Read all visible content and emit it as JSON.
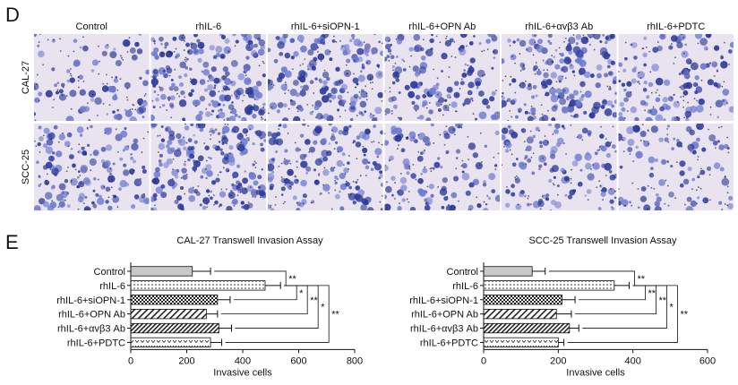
{
  "panel_d": {
    "letter": "D",
    "columns": [
      "Control",
      "rhIL-6",
      "rhIL-6+siOPN-1",
      "rhIL-6+OPN Ab",
      "rhIL-6+αvβ3 Ab",
      "rhIL-6+PDTC"
    ],
    "rows": [
      "CAL-27",
      "SCC-25"
    ],
    "image_colors": {
      "background": "#e9e3ef",
      "stain_dark": "#2c3a9a",
      "stain_light": "#6f7bd0"
    }
  },
  "panel_e": {
    "letter": "E"
  },
  "chart_data": [
    {
      "type": "bar",
      "orientation": "horizontal",
      "title": "CAL-27 Transwell Invasion Assay",
      "xlabel": "Invasive cells",
      "ylabel": "",
      "xlim": [
        0,
        800
      ],
      "xticks": [
        0,
        200,
        400,
        600,
        800
      ],
      "categories": [
        "Control",
        "rhIL-6",
        "rhIL-6+siOPN-1",
        "rhIL-6+OPN Ab",
        "rhIL-6+αvβ3 Ab",
        "rhIL-6+PDTC"
      ],
      "values": [
        220,
        480,
        310,
        270,
        315,
        285
      ],
      "errors": [
        65,
        55,
        45,
        40,
        45,
        40
      ],
      "patterns": [
        "gray",
        "dots",
        "checker",
        "diag",
        "diag-dense",
        "hearts"
      ],
      "significance": [
        {
          "from": 0,
          "to": 1,
          "label": "**"
        },
        {
          "from": 1,
          "to": 2,
          "label": "*"
        },
        {
          "from": 1,
          "to": 3,
          "label": "**"
        },
        {
          "from": 1,
          "to": 4,
          "label": "*"
        },
        {
          "from": 1,
          "to": 5,
          "label": "**"
        }
      ],
      "grid": false
    },
    {
      "type": "bar",
      "orientation": "horizontal",
      "title": "SCC-25 Transwell Invasion Assay",
      "xlabel": "Invasive cells",
      "ylabel": "",
      "xlim": [
        0,
        600
      ],
      "xticks": [
        0,
        200,
        400,
        600
      ],
      "categories": [
        "Control",
        "rhIL-6",
        "rhIL-6+siOPN-1",
        "rhIL-6+OPN Ab",
        "rhIL-6+αvβ3 Ab",
        "rhIL-6+PDTC"
      ],
      "values": [
        130,
        350,
        210,
        195,
        230,
        200
      ],
      "errors": [
        35,
        40,
        35,
        40,
        25,
        15
      ],
      "patterns": [
        "gray",
        "dots",
        "checker",
        "diag",
        "diag-dense",
        "hearts"
      ],
      "significance": [
        {
          "from": 0,
          "to": 1,
          "label": "**"
        },
        {
          "from": 1,
          "to": 2,
          "label": "**"
        },
        {
          "from": 1,
          "to": 3,
          "label": "**"
        },
        {
          "from": 1,
          "to": 4,
          "label": "*"
        },
        {
          "from": 1,
          "to": 5,
          "label": "**"
        }
      ],
      "grid": false
    }
  ]
}
